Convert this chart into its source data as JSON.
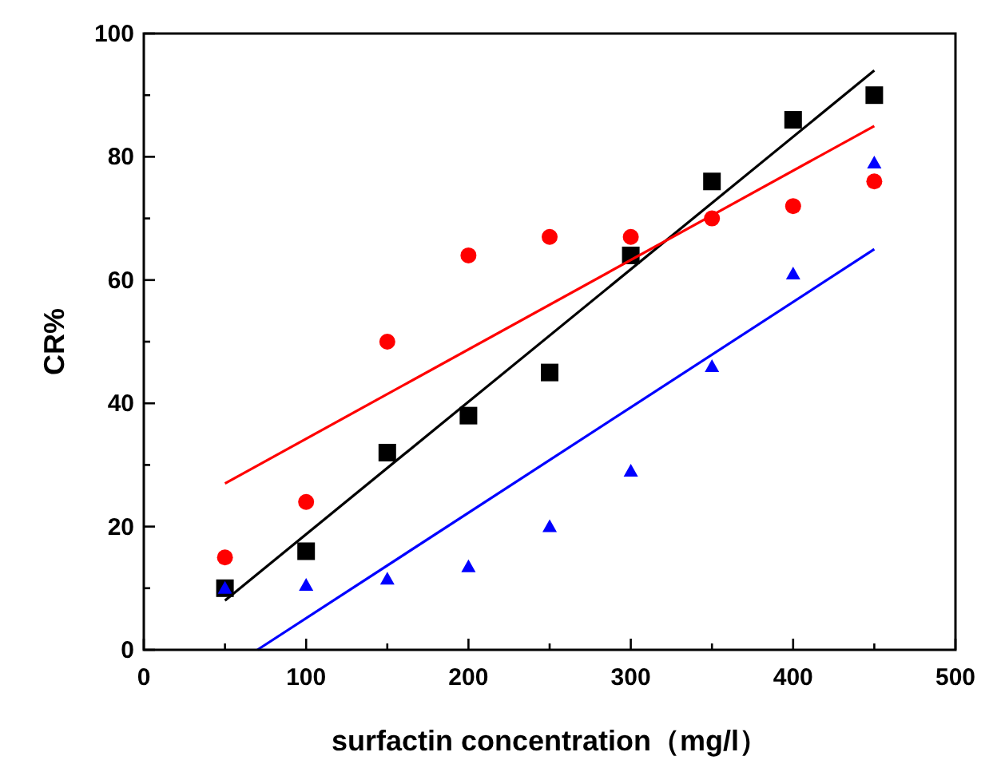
{
  "chart_data": {
    "type": "scatter",
    "xlabel": "surfactin concentration（mg/l）",
    "ylabel": "CR%",
    "xlim": [
      0,
      500
    ],
    "ylim": [
      0,
      100
    ],
    "xticks": [
      0,
      {
        "value": 50,
        "label": null
      },
      100,
      {
        "value": 150,
        "label": null
      },
      200,
      {
        "value": 250,
        "label": null
      },
      300,
      {
        "value": 350,
        "label": null
      },
      400,
      {
        "value": 450,
        "label": null
      },
      500
    ],
    "yticks": [
      0,
      {
        "value": 10,
        "label": null
      },
      20,
      {
        "value": 30,
        "label": null
      },
      40,
      {
        "value": 50,
        "label": null
      },
      60,
      {
        "value": 70,
        "label": null
      },
      80,
      {
        "value": 90,
        "label": null
      },
      100
    ],
    "series": [
      {
        "color": "#000000",
        "marker": "square",
        "x": [
          50,
          100,
          150,
          200,
          250,
          300,
          350,
          400,
          450
        ],
        "values": [
          10,
          16,
          32,
          38,
          45,
          64,
          76,
          86,
          90
        ]
      },
      {
        "color": "#ff0000",
        "marker": "circle",
        "x": [
          50,
          100,
          150,
          200,
          250,
          300,
          350,
          400,
          450
        ],
        "values": [
          15,
          24,
          50,
          64,
          67,
          67,
          70,
          72,
          76
        ]
      },
      {
        "color": "#0000ff",
        "marker": "triangle",
        "x": [
          50,
          100,
          150,
          200,
          250,
          300,
          350,
          400,
          450
        ],
        "values": [
          10,
          10.5,
          11.5,
          13.5,
          20,
          29,
          46,
          61,
          79
        ]
      },
      {
        "type": "line",
        "color": "#000000",
        "marker": "none",
        "line_style": "solid",
        "x": [
          50,
          450
        ],
        "values": [
          8,
          94
        ]
      },
      {
        "type": "line",
        "color": "#ff0000",
        "marker": "none",
        "line_style": "solid",
        "x": [
          50,
          450
        ],
        "values": [
          27,
          85
        ]
      },
      {
        "type": "line",
        "color": "#0000ff",
        "marker": "none",
        "line_style": "solid",
        "x": [
          70,
          450
        ],
        "values": [
          0,
          65
        ]
      }
    ]
  }
}
